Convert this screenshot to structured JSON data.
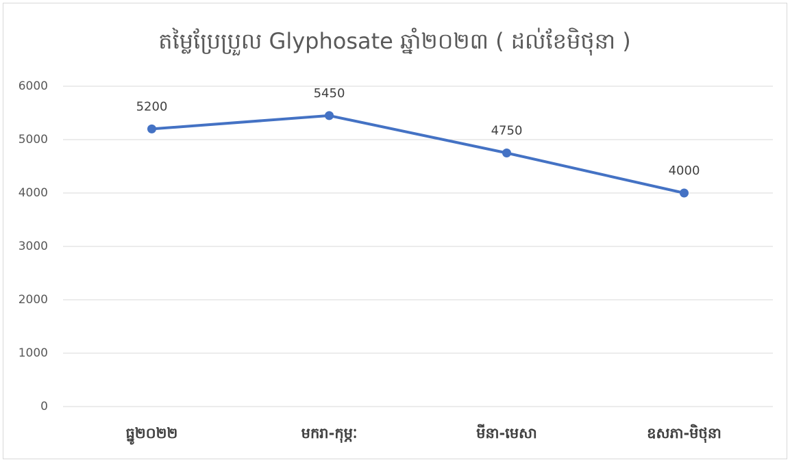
{
  "chart_data": {
    "type": "line",
    "title": "តម្លៃប្រែប្រួល Glyphosate ឆ្នាំ២០២៣ ( ដល់ខែមិថុនា )",
    "categories": [
      "ធ្នូ២០២២",
      "មករា-កុម្ភៈ",
      "មីនា-មេសា",
      "ឧសភា-មិថុនា"
    ],
    "series": [
      {
        "name": "Glyphosate",
        "color": "#4472c4",
        "values": [
          5200,
          5450,
          4750,
          4000
        ]
      }
    ],
    "ylim": [
      0,
      6000
    ],
    "yticks": [
      0,
      1000,
      2000,
      3000,
      4000,
      5000,
      6000
    ],
    "grid": true
  }
}
